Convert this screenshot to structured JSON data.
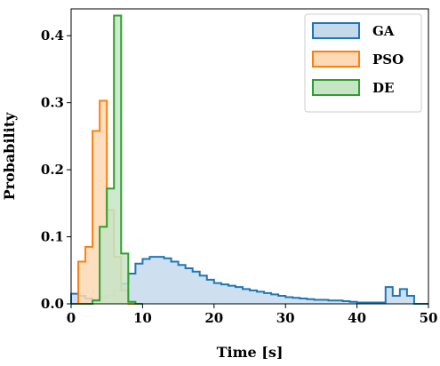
{
  "chart_data": {
    "type": "histogram",
    "xlabel": "Time [s]",
    "ylabel": "Probability",
    "xlim": [
      0,
      50
    ],
    "ylim": [
      0,
      0.44
    ],
    "xticks": [
      0,
      10,
      20,
      30,
      40,
      50
    ],
    "yticks": [
      0.0,
      0.1,
      0.2,
      0.3,
      0.4
    ],
    "ytick_labels": [
      "0.0",
      "0.1",
      "0.2",
      "0.3",
      "0.4"
    ],
    "legend_position": "upper-right",
    "grid": false,
    "series": [
      {
        "name": "GA",
        "color": "#1f77b4",
        "fill": "#c5d9ec",
        "edges": [
          0,
          1,
          2,
          3,
          4,
          5,
          6,
          7,
          8,
          9,
          10,
          11,
          12,
          13,
          14,
          15,
          16,
          17,
          18,
          19,
          20,
          21,
          22,
          23,
          24,
          25,
          26,
          27,
          28,
          29,
          30,
          31,
          32,
          33,
          34,
          35,
          36,
          37,
          38,
          39,
          40,
          41,
          42,
          43,
          44,
          45,
          46,
          47,
          48,
          49,
          50
        ],
        "values": [
          0.015,
          0.012,
          0.008,
          0.006,
          0.01,
          0.012,
          0.02,
          0.03,
          0.045,
          0.06,
          0.067,
          0.07,
          0.07,
          0.068,
          0.063,
          0.058,
          0.053,
          0.048,
          0.042,
          0.036,
          0.031,
          0.029,
          0.027,
          0.025,
          0.022,
          0.02,
          0.018,
          0.016,
          0.014,
          0.012,
          0.01,
          0.009,
          0.008,
          0.007,
          0.006,
          0.006,
          0.005,
          0.005,
          0.004,
          0.003,
          0.002,
          0.002,
          0.002,
          0.002,
          0.025,
          0.012,
          0.022,
          0.012,
          0.0,
          0.0
        ]
      },
      {
        "name": "PSO",
        "color": "#ff7f0e",
        "fill": "#fdd9b5",
        "edges": [
          0,
          1,
          2,
          3,
          4,
          5,
          6,
          7,
          8,
          9,
          10
        ],
        "values": [
          0.0,
          0.063,
          0.085,
          0.258,
          0.303,
          0.14,
          0.07,
          0.02,
          0.0,
          0.0
        ]
      },
      {
        "name": "DE",
        "color": "#2ca02c",
        "fill": "#c7e5c5",
        "edges": [
          0,
          1,
          2,
          3,
          4,
          5,
          6,
          7,
          8,
          9,
          10
        ],
        "values": [
          0.0,
          0.0,
          0.0,
          0.005,
          0.115,
          0.172,
          0.43,
          0.075,
          0.003,
          0.0
        ]
      }
    ]
  }
}
